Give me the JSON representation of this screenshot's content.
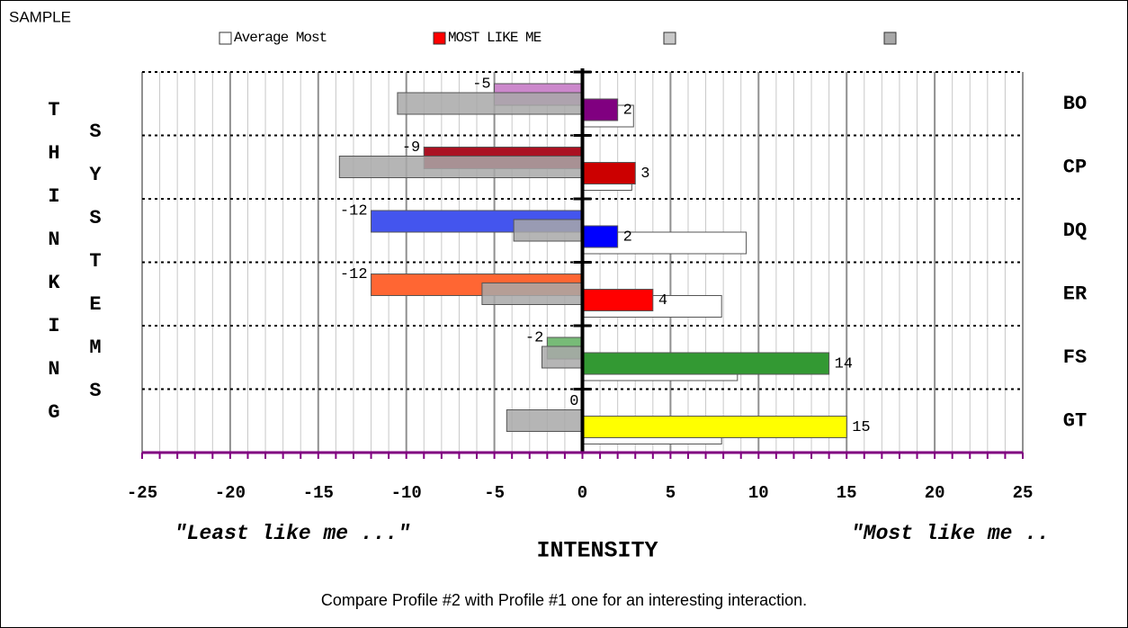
{
  "sample_label": "SAMPLE",
  "left_label_1": "THINKING",
  "left_label_2": "SYSTEMS",
  "footnote": "Compare Profile #2 with Profile #1 one for an interesting interaction.",
  "chart_data": {
    "type": "bar",
    "orientation": "horizontal",
    "categories": [
      "BO",
      "CP",
      "DQ",
      "ER",
      "FS",
      "GT"
    ],
    "series": [
      {
        "name": "Average Most",
        "color": "#ffffff",
        "values": [
          2.9,
          2.8,
          9.3,
          7.9,
          8.8,
          7.9
        ]
      },
      {
        "name": "MOST LIKE ME",
        "color": "#ff0000",
        "colors": [
          "#800080",
          "#cc0000",
          "#0000ff",
          "#ff0000",
          "#339933",
          "#ffff00"
        ],
        "data_labels": true,
        "values": [
          2,
          3,
          2,
          4,
          14,
          15
        ]
      },
      {
        "color": "#c8c8c8",
        "colors": [
          "#cc88cc",
          "#aa1122",
          "#4455ee",
          "#ff6633",
          "#77bb77",
          "#eeee66"
        ],
        "data_labels": true,
        "values": [
          -5,
          -9,
          -12,
          -12,
          -2,
          0
        ]
      },
      {
        "color": "#a8a8a8",
        "values": [
          -10.5,
          -13.8,
          -3.9,
          -5.7,
          -2.3,
          -4.3
        ]
      }
    ],
    "xlim": [
      -25,
      25
    ],
    "xticks": [
      -25,
      -20,
      -15,
      -10,
      -5,
      0,
      5,
      10,
      15,
      20,
      25
    ],
    "xlabel": "INTENSITY",
    "left_annotation": "\"Least like me ...\"",
    "right_annotation": "\"Most like me ..",
    "grid": true,
    "minor_grid": true
  }
}
